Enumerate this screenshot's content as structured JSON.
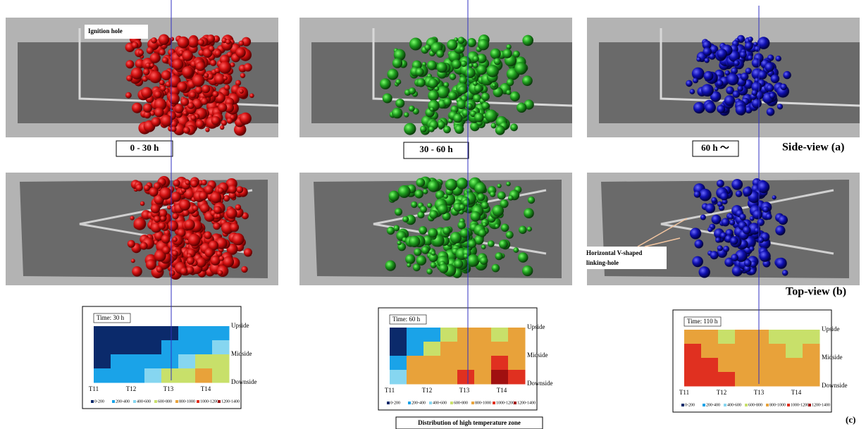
{
  "side_view": {
    "label": "Side-view (a)",
    "annotation": "Ignition hole",
    "periods": [
      "0 - 30 h",
      "30 - 60 h",
      "60 h ～"
    ]
  },
  "top_view": {
    "label": "Top-view (b)",
    "annotation": [
      "Horizontal V-shaped",
      "linking-hole"
    ]
  },
  "temperature_maps": {
    "label": "(c)",
    "caption": "Distribution of high temperature zone",
    "times": [
      "Time: 30 h",
      "Time: 60 h",
      "Time: 110 h"
    ],
    "zones": [
      "Upside",
      "Midside",
      "Downside"
    ],
    "positions": [
      "T11",
      "T12",
      "T13",
      "T14"
    ],
    "legend": [
      {
        "label": "0-200",
        "color": "#0b2a6b"
      },
      {
        "label": "200-400",
        "color": "#1aa3e8"
      },
      {
        "label": "400-600",
        "color": "#86d6f0"
      },
      {
        "label": "600-800",
        "color": "#c8e06a"
      },
      {
        "label": "800-1000",
        "color": "#e8a23a"
      },
      {
        "label": "1000-1200",
        "color": "#e03020"
      },
      {
        "label": "1200-1400",
        "color": "#a01010"
      }
    ]
  }
}
